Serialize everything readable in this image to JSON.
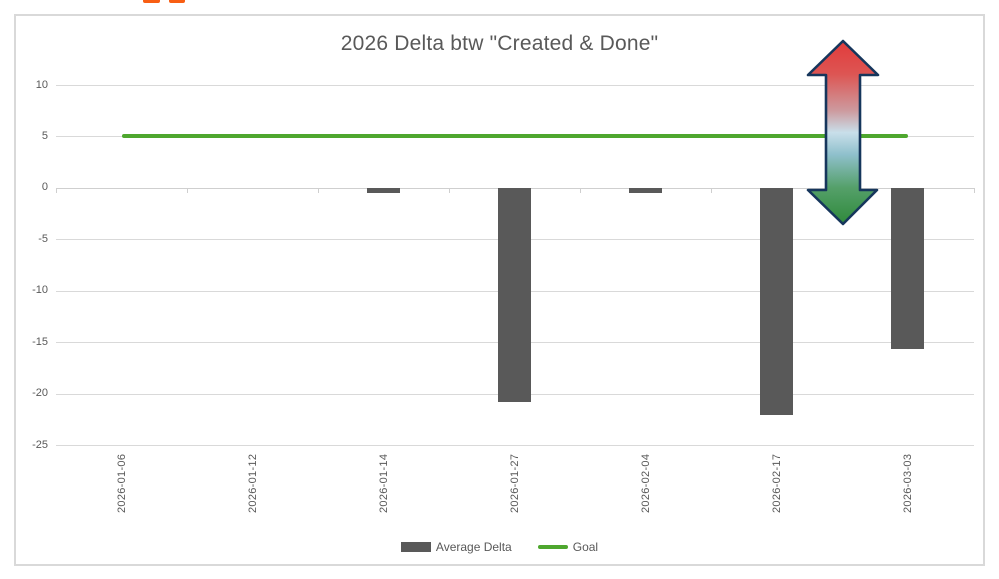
{
  "page": {
    "logo_fragment_color": "#F85E13"
  },
  "chart_data": {
    "type": "bar",
    "title": "2026 Delta btw \"Created & Done\"",
    "categories": [
      "2026-01-06",
      "2026-01-12",
      "2026-01-14",
      "2026-01-27",
      "2026-02-04",
      "2026-02-17",
      "2026-03-03"
    ],
    "series": [
      {
        "name": "Average Delta",
        "type": "bar",
        "color": "#595959",
        "values": [
          0,
          0,
          -0.5,
          -20.8,
          -0.5,
          -22.1,
          -15.7
        ]
      },
      {
        "name": "Goal",
        "type": "line",
        "color": "#4EA72E",
        "values": [
          5,
          5,
          5,
          5,
          5,
          5,
          5
        ]
      }
    ],
    "ylim": [
      -25,
      10
    ],
    "yticks": [
      10,
      5,
      0,
      -5,
      -10,
      -15,
      -20,
      -25
    ],
    "grid": true,
    "legend_position": "bottom"
  },
  "annotation": {
    "double_arrow": {
      "top_color": "#E23B3B",
      "mid_color": "#C9DFEA",
      "bottom_color": "#2F8A3B",
      "outline_color": "#16365C"
    }
  }
}
